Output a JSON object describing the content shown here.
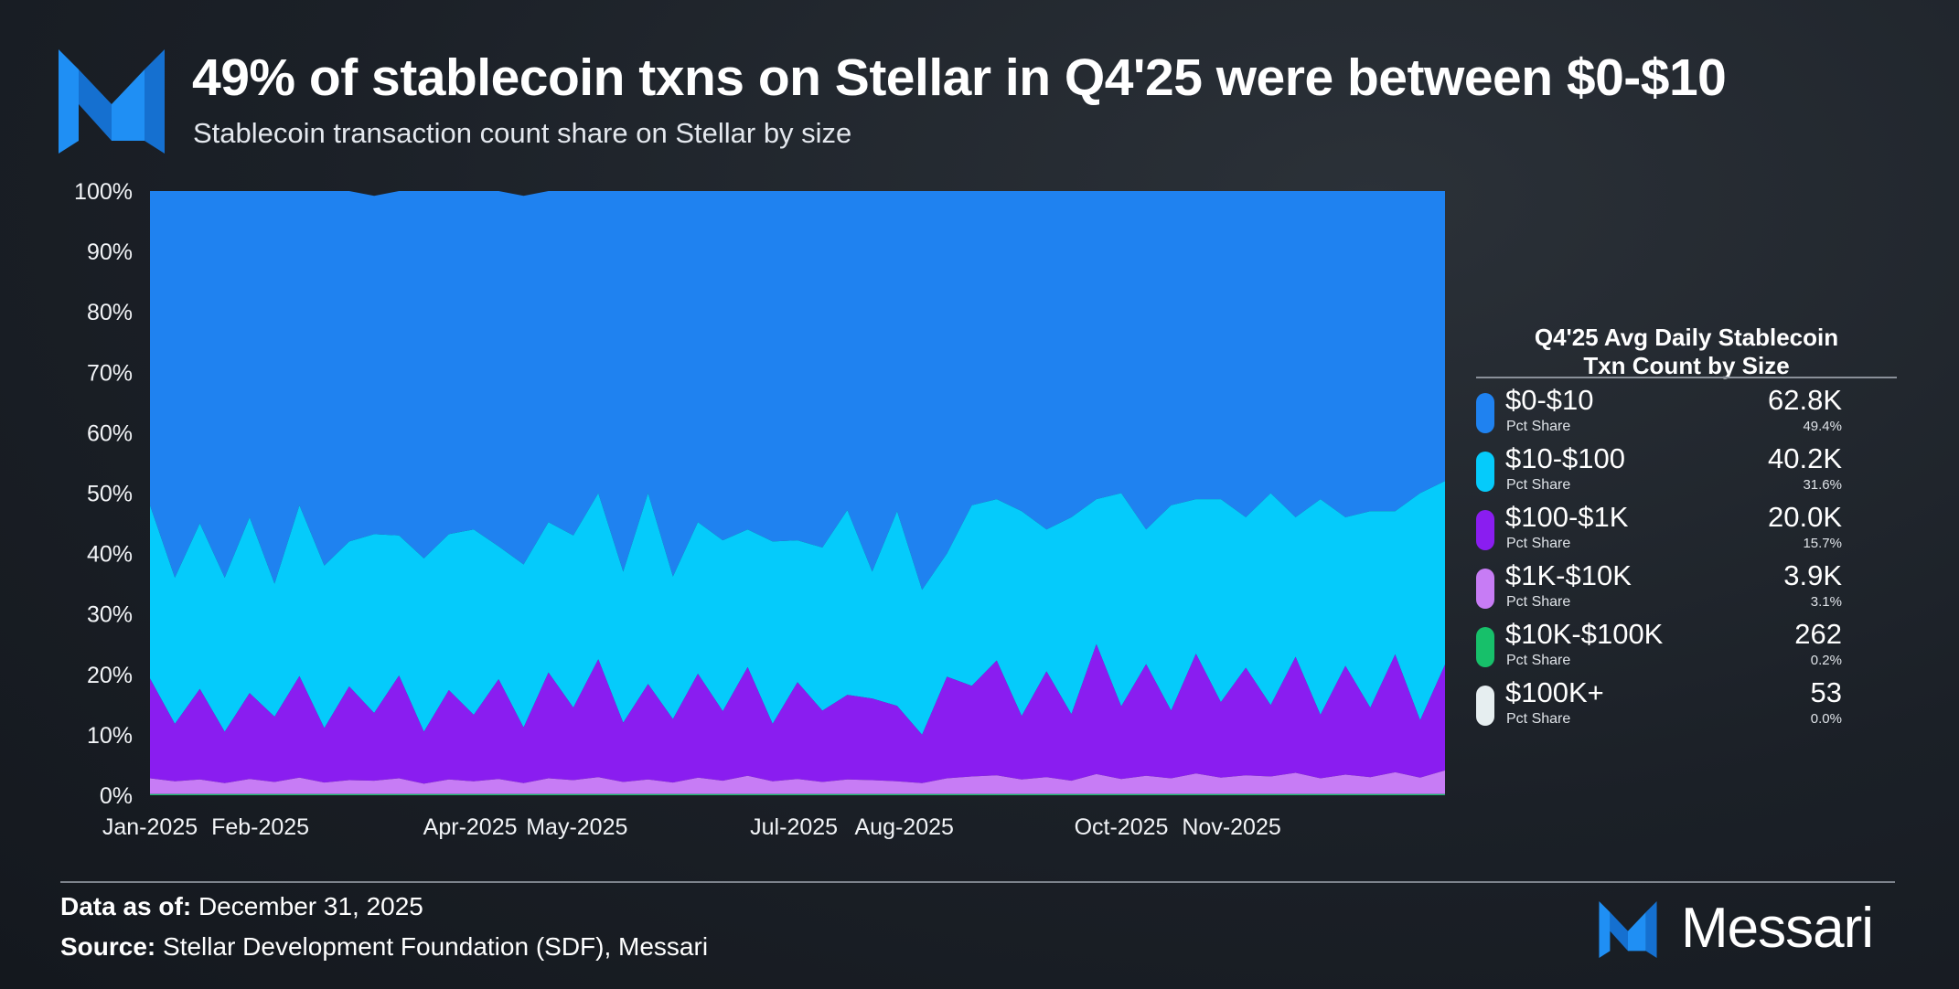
{
  "header": {
    "title": "49% of stablecoin txns on Stellar in Q4'25 were between $0-$10",
    "subtitle": "Stablecoin transaction count share on Stellar by size"
  },
  "legend": {
    "title_line1": "Q4'25 Avg Daily Stablecoin",
    "title_line2": "Txn Count by Size",
    "items": [
      {
        "label": "$0-$10",
        "sub": "Pct Share",
        "value": "62.8K",
        "pct": "49.4%",
        "color": "#1f82f0"
      },
      {
        "label": "$10-$100",
        "sub": "Pct Share",
        "value": "40.2K",
        "pct": "31.6%",
        "color": "#05cbfb"
      },
      {
        "label": "$100-$1K",
        "sub": "Pct Share",
        "value": "20.0K",
        "pct": "15.7%",
        "color": "#8a1df0"
      },
      {
        "label": "$1K-$10K",
        "sub": "Pct Share",
        "value": "3.9K",
        "pct": "3.1%",
        "color": "#c77cf5"
      },
      {
        "label": "$10K-$100K",
        "sub": "Pct Share",
        "value": "262",
        "pct": "0.2%",
        "color": "#17c06a"
      },
      {
        "label": "$100K+",
        "sub": "Pct Share",
        "value": "53",
        "pct": "0.0%",
        "color": "#e6eef0"
      }
    ]
  },
  "footer": {
    "data_as_of_label": "Data as of:",
    "data_as_of_value": "December 31, 2025",
    "source_label": "Source:",
    "source_value": "Stellar Development Foundation (SDF), Messari",
    "brand": "Messari"
  },
  "chart_data": {
    "type": "area",
    "stacked": true,
    "normalized": true,
    "x_range": [
      "2025-01-01",
      "2025-12-31"
    ],
    "x_tick_labels": [
      "Jan-2025",
      "Feb-2025",
      "Apr-2025",
      "May-2025",
      "Jul-2025",
      "Aug-2025",
      "Oct-2025",
      "Nov-2025"
    ],
    "y_tick_labels": [
      "0%",
      "10%",
      "20%",
      "30%",
      "40%",
      "50%",
      "60%",
      "70%",
      "80%",
      "90%",
      "100%"
    ],
    "ylim": [
      0,
      100
    ],
    "grid": false,
    "legend_position": "right",
    "series_order_bottom_to_top": [
      "$100K+",
      "$10K-$100K",
      "$1K-$10K",
      "$100-$1K",
      "$10-$100",
      "$0-$10"
    ],
    "x": [
      "2025-01-01",
      "2025-01-08",
      "2025-01-15",
      "2025-01-22",
      "2025-01-29",
      "2025-02-05",
      "2025-02-12",
      "2025-02-19",
      "2025-02-26",
      "2025-03-05",
      "2025-03-12",
      "2025-03-19",
      "2025-03-26",
      "2025-04-02",
      "2025-04-09",
      "2025-04-16",
      "2025-04-23",
      "2025-04-30",
      "2025-05-07",
      "2025-05-14",
      "2025-05-21",
      "2025-05-28",
      "2025-06-04",
      "2025-06-11",
      "2025-06-18",
      "2025-06-25",
      "2025-07-02",
      "2025-07-09",
      "2025-07-16",
      "2025-07-23",
      "2025-07-30",
      "2025-08-06",
      "2025-08-13",
      "2025-08-20",
      "2025-08-27",
      "2025-09-03",
      "2025-09-10",
      "2025-09-17",
      "2025-09-24",
      "2025-10-01",
      "2025-10-08",
      "2025-10-15",
      "2025-10-22",
      "2025-10-29",
      "2025-11-05",
      "2025-11-12",
      "2025-11-19",
      "2025-11-26",
      "2025-12-03",
      "2025-12-10",
      "2025-12-17",
      "2025-12-24",
      "2025-12-31"
    ],
    "series": [
      {
        "name": "$100K+",
        "values": [
          0.0,
          0.0,
          0.0,
          0.0,
          0.0,
          0.0,
          0.0,
          0.0,
          0.0,
          0.0,
          0.0,
          0.0,
          0.0,
          0.0,
          0.0,
          0.0,
          0.0,
          0.0,
          0.0,
          0.0,
          0.0,
          0.0,
          0.0,
          0.0,
          0.0,
          0.0,
          0.0,
          0.0,
          0.0,
          0.0,
          0.0,
          0.0,
          0.0,
          0.0,
          0.0,
          0.0,
          0.0,
          0.0,
          0.0,
          0.0,
          0.0,
          0.0,
          0.0,
          0.0,
          0.0,
          0.0,
          0.0,
          0.0,
          0.0,
          0.0,
          0.0,
          0.0,
          0.0
        ]
      },
      {
        "name": "$10K-$100K",
        "values": [
          0.2,
          0.2,
          0.2,
          0.2,
          0.2,
          0.2,
          0.2,
          0.2,
          0.2,
          0.2,
          0.2,
          0.2,
          0.2,
          0.2,
          0.2,
          0.2,
          0.2,
          0.2,
          0.2,
          0.2,
          0.2,
          0.2,
          0.2,
          0.2,
          0.2,
          0.2,
          0.2,
          0.2,
          0.2,
          0.2,
          0.2,
          0.2,
          0.2,
          0.2,
          0.2,
          0.2,
          0.2,
          0.2,
          0.2,
          0.2,
          0.2,
          0.2,
          0.2,
          0.2,
          0.2,
          0.2,
          0.2,
          0.2,
          0.2,
          0.2,
          0.2,
          0.2,
          0.2
        ]
      },
      {
        "name": "$1K-$10K",
        "values": [
          2.6,
          2.1,
          2.4,
          1.8,
          2.5,
          2.0,
          2.7,
          1.9,
          2.3,
          2.2,
          2.6,
          1.7,
          2.4,
          2.1,
          2.5,
          1.8,
          2.6,
          2.3,
          2.8,
          2.0,
          2.4,
          1.9,
          2.7,
          2.2,
          3.0,
          2.1,
          2.5,
          2.0,
          2.4,
          2.3,
          2.1,
          1.8,
          2.6,
          2.9,
          3.1,
          2.4,
          2.8,
          2.2,
          3.3,
          2.5,
          3.0,
          2.6,
          3.4,
          2.7,
          3.1,
          2.9,
          3.5,
          2.6,
          3.2,
          2.8,
          3.6,
          2.7,
          3.9
        ]
      },
      {
        "name": "$100-$1K",
        "values": [
          16.5,
          9.5,
          15.0,
          8.5,
          14.2,
          10.8,
          16.8,
          9.0,
          15.5,
          11.2,
          17.0,
          8.6,
          14.8,
          11.0,
          16.5,
          9.2,
          17.5,
          12.0,
          19.5,
          9.8,
          15.8,
          10.5,
          17.2,
          11.5,
          18.0,
          9.5,
          16.0,
          11.8,
          14.0,
          13.5,
          12.5,
          8.0,
          16.8,
          15.0,
          19.0,
          10.5,
          17.5,
          11.0,
          21.5,
          12.0,
          18.5,
          11.2,
          19.8,
          12.5,
          17.8,
          11.8,
          19.2,
          10.5,
          18.0,
          11.5,
          19.5,
          9.5,
          17.5
        ]
      },
      {
        "name": "$10-$100",
        "values": [
          28.7,
          24.2,
          27.4,
          25.5,
          29.1,
          22.0,
          28.3,
          26.9,
          24.0,
          29.6,
          23.2,
          28.7,
          25.8,
          30.7,
          22.0,
          27.0,
          24.9,
          28.5,
          27.5,
          25.0,
          31.6,
          23.6,
          25.1,
          28.3,
          22.8,
          30.2,
          23.5,
          27.0,
          30.6,
          21.0,
          32.2,
          24.0,
          20.4,
          29.9,
          26.7,
          33.9,
          23.5,
          32.6,
          24.0,
          35.3,
          22.3,
          34.0,
          25.6,
          33.6,
          24.9,
          35.1,
          23.1,
          35.7,
          24.6,
          32.5,
          23.7,
          37.6,
          30.4
        ]
      },
      {
        "name": "$0-$10",
        "values": [
          52.0,
          64.0,
          55.0,
          64.0,
          54.0,
          65.0,
          52.0,
          62.0,
          58.0,
          56.0,
          57.5,
          61.0,
          57.0,
          56.0,
          59.5,
          61.0,
          55.0,
          57.0,
          50.0,
          63.0,
          50.0,
          64.0,
          55.0,
          58.0,
          56.0,
          58.0,
          58.0,
          59.0,
          53.0,
          63.0,
          53.0,
          66.0,
          60.0,
          52.0,
          51.0,
          53.0,
          56.0,
          54.0,
          51.0,
          50.0,
          56.0,
          52.0,
          51.0,
          51.0,
          54.0,
          50.0,
          54.0,
          51.0,
          54.0,
          53.0,
          53.0,
          50.0,
          48.0
        ]
      }
    ]
  }
}
